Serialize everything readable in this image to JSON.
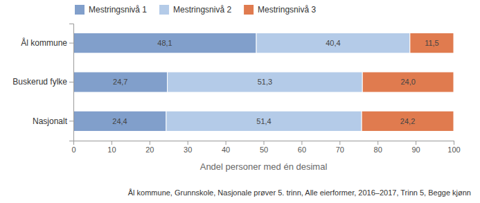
{
  "chart_data": {
    "type": "bar",
    "orientation": "horizontal",
    "stacked": true,
    "data_labels": true,
    "grid": false,
    "legend": "top-left",
    "categories": [
      "Ål kommune",
      "Buskerud fylke",
      "Nasjonalt"
    ],
    "series": [
      {
        "name": "Mestringsnivå 1",
        "color": "#819fcb",
        "values": [
          48.1,
          24.7,
          24.4
        ],
        "value_labels": [
          "48,1",
          "24,7",
          "24,4"
        ]
      },
      {
        "name": "Mestringsnivå 2",
        "color": "#b4cbe8",
        "values": [
          40.4,
          51.3,
          51.4
        ],
        "value_labels": [
          "40,4",
          "51,3",
          "51,4"
        ]
      },
      {
        "name": "Mestringsnivå 3",
        "color": "#e07b4f",
        "values": [
          11.5,
          24.0,
          24.2
        ],
        "value_labels": [
          "11,5",
          "24,0",
          "24,2"
        ]
      }
    ],
    "x_label": "Andel personer med én desimal",
    "xlim": [
      0,
      100
    ],
    "xticks": [
      0,
      10,
      20,
      30,
      40,
      50,
      60,
      70,
      80,
      90,
      100
    ],
    "annotations": [
      "Ål kommune, Grunnskole, Nasjonale prøver 5. trinn, Alle eierformer, 2016–2017, Trinn 5, Begge kjønn"
    ]
  }
}
